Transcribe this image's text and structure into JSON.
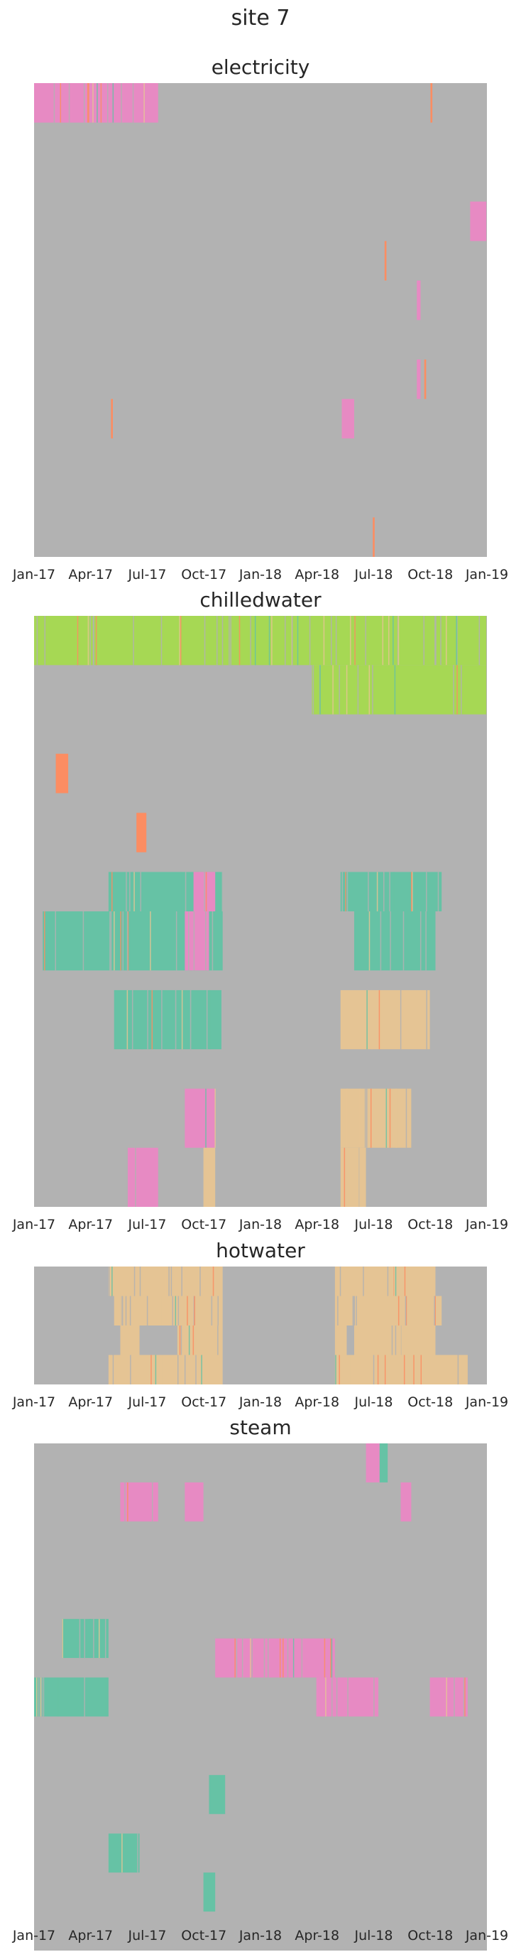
{
  "title": "site 7",
  "colors": {
    "no_data": "#b2b2b2",
    "green": "#a6d854",
    "pink": "#e78ac3",
    "orange": "#fc8d62",
    "teal": "#66c2a5",
    "tan": "#e5c494",
    "purple": "#8da0cb"
  },
  "chart_data": [
    {
      "type": "heatmap",
      "title": "electricity",
      "x_ticks": [
        "Jan-17",
        "Apr-17",
        "Jul-17",
        "Oct-17",
        "Jan-18",
        "Apr-18",
        "Jul-18",
        "Oct-18",
        "Jan-19"
      ],
      "x_range": [
        "2017-01-01",
        "2019-01-01"
      ],
      "meters": 48,
      "default": "no_data",
      "segments": [
        {
          "meter_start": 0,
          "meter_end": 4,
          "start": "2017-01-01",
          "end": "2017-07-20",
          "color": "pink"
        },
        {
          "meter_start": 0,
          "meter_end": 4,
          "start": "2018-10-02",
          "end": "2018-10-05",
          "color": "orange"
        },
        {
          "meter_start": 12,
          "meter_end": 16,
          "start": "2018-12-05",
          "end": "2018-12-31",
          "color": "pink"
        },
        {
          "meter_start": 16,
          "meter_end": 20,
          "start": "2018-07-20",
          "end": "2018-07-23",
          "color": "orange"
        },
        {
          "meter_start": 20,
          "meter_end": 24,
          "start": "2018-09-10",
          "end": "2018-09-16",
          "color": "pink"
        },
        {
          "meter_start": 28,
          "meter_end": 32,
          "start": "2018-09-10",
          "end": "2018-09-16",
          "color": "pink"
        },
        {
          "meter_start": 28,
          "meter_end": 32,
          "start": "2018-09-22",
          "end": "2018-09-25",
          "color": "orange"
        },
        {
          "meter_start": 32,
          "meter_end": 36,
          "start": "2017-05-05",
          "end": "2017-05-08",
          "color": "orange"
        },
        {
          "meter_start": 32,
          "meter_end": 36,
          "start": "2018-05-12",
          "end": "2018-06-01",
          "color": "pink"
        },
        {
          "meter_start": 44,
          "meter_end": 48,
          "start": "2018-07-01",
          "end": "2018-07-04",
          "color": "orange"
        }
      ]
    },
    {
      "type": "heatmap",
      "title": "chilledwater",
      "x_ticks": [
        "Jan-17",
        "Apr-17",
        "Jul-17",
        "Oct-17",
        "Jan-18",
        "Apr-18",
        "Jul-18",
        "Oct-18",
        "Jan-19"
      ],
      "x_range": [
        "2017-01-01",
        "2019-01-01"
      ],
      "meters": 60,
      "default": "no_data",
      "segments": [
        {
          "meter_start": 0,
          "meter_end": 5,
          "start": "2017-01-01",
          "end": "2018-12-31",
          "color": "green"
        },
        {
          "meter_start": 5,
          "meter_end": 10,
          "start": "2018-03-25",
          "end": "2018-12-31",
          "color": "green"
        },
        {
          "meter_start": 14,
          "meter_end": 18,
          "start": "2017-02-05",
          "end": "2017-02-25",
          "color": "orange"
        },
        {
          "meter_start": 20,
          "meter_end": 24,
          "start": "2017-06-15",
          "end": "2017-07-01",
          "color": "orange"
        },
        {
          "meter_start": 26,
          "meter_end": 30,
          "start": "2017-05-01",
          "end": "2017-11-01",
          "color": "teal"
        },
        {
          "meter_start": 26,
          "meter_end": 30,
          "start": "2018-05-10",
          "end": "2018-10-20",
          "color": "teal"
        },
        {
          "meter_start": 26,
          "meter_end": 30,
          "start": "2017-09-15",
          "end": "2017-10-20",
          "color": "pink"
        },
        {
          "meter_start": 30,
          "meter_end": 36,
          "start": "2017-01-15",
          "end": "2017-11-01",
          "color": "teal"
        },
        {
          "meter_start": 30,
          "meter_end": 36,
          "start": "2017-09-01",
          "end": "2017-10-10",
          "color": "pink"
        },
        {
          "meter_start": 30,
          "meter_end": 36,
          "start": "2018-06-01",
          "end": "2018-10-10",
          "color": "teal"
        },
        {
          "meter_start": 38,
          "meter_end": 44,
          "start": "2017-05-10",
          "end": "2017-10-30",
          "color": "teal"
        },
        {
          "meter_start": 38,
          "meter_end": 44,
          "start": "2018-05-10",
          "end": "2018-10-01",
          "color": "tan"
        },
        {
          "meter_start": 48,
          "meter_end": 54,
          "start": "2017-09-01",
          "end": "2017-10-20",
          "color": "pink"
        },
        {
          "meter_start": 48,
          "meter_end": 54,
          "start": "2018-05-10",
          "end": "2018-09-01",
          "color": "tan"
        },
        {
          "meter_start": 54,
          "meter_end": 60,
          "start": "2017-06-01",
          "end": "2017-07-20",
          "color": "pink"
        },
        {
          "meter_start": 54,
          "meter_end": 60,
          "start": "2017-10-01",
          "end": "2017-10-20",
          "color": "tan"
        },
        {
          "meter_start": 54,
          "meter_end": 60,
          "start": "2018-05-10",
          "end": "2018-06-20",
          "color": "tan"
        }
      ]
    },
    {
      "type": "heatmap",
      "title": "hotwater",
      "x_ticks": [
        "Jan-17",
        "Apr-17",
        "Jul-17",
        "Oct-17",
        "Jan-18",
        "Apr-18",
        "Jul-18",
        "Oct-18",
        "Jan-19"
      ],
      "x_range": [
        "2017-01-01",
        "2019-01-01"
      ],
      "meters": 4,
      "default": "no_data",
      "segments": [
        {
          "meter_start": 0,
          "meter_end": 1,
          "start": "2017-05-01",
          "end": "2017-11-01",
          "color": "tan"
        },
        {
          "meter_start": 0,
          "meter_end": 1,
          "start": "2018-05-01",
          "end": "2018-10-10",
          "color": "tan"
        },
        {
          "meter_start": 1,
          "meter_end": 2,
          "start": "2017-05-10",
          "end": "2017-11-01",
          "color": "tan"
        },
        {
          "meter_start": 1,
          "meter_end": 2,
          "start": "2018-05-01",
          "end": "2018-10-20",
          "color": "tan"
        },
        {
          "meter_start": 2,
          "meter_end": 3,
          "start": "2017-05-20",
          "end": "2017-06-20",
          "color": "tan"
        },
        {
          "meter_start": 2,
          "meter_end": 3,
          "start": "2017-08-20",
          "end": "2017-11-01",
          "color": "tan"
        },
        {
          "meter_start": 2,
          "meter_end": 3,
          "start": "2018-05-01",
          "end": "2018-05-20",
          "color": "tan"
        },
        {
          "meter_start": 2,
          "meter_end": 3,
          "start": "2018-06-01",
          "end": "2018-10-10",
          "color": "tan"
        },
        {
          "meter_start": 3,
          "meter_end": 4,
          "start": "2017-05-01",
          "end": "2017-11-01",
          "color": "tan"
        },
        {
          "meter_start": 3,
          "meter_end": 4,
          "start": "2018-05-01",
          "end": "2018-12-01",
          "color": "tan"
        }
      ]
    },
    {
      "type": "heatmap",
      "title": "steam",
      "x_ticks": [
        "Jan-17",
        "Apr-17",
        "Jul-17",
        "Oct-17",
        "Jan-18",
        "Apr-18",
        "Jul-18",
        "Oct-18",
        "Jan-19"
      ],
      "x_range": [
        "2017-01-01",
        "2019-01-01"
      ],
      "meters": 26,
      "default": "no_data",
      "segments": [
        {
          "meter_start": 0,
          "meter_end": 2,
          "start": "2018-06-20",
          "end": "2018-07-12",
          "color": "pink"
        },
        {
          "meter_start": 0,
          "meter_end": 2,
          "start": "2018-07-12",
          "end": "2018-07-25",
          "color": "teal"
        },
        {
          "meter_start": 2,
          "meter_end": 4,
          "start": "2017-05-20",
          "end": "2017-07-20",
          "color": "pink"
        },
        {
          "meter_start": 2,
          "meter_end": 4,
          "start": "2017-09-01",
          "end": "2017-10-01",
          "color": "pink"
        },
        {
          "meter_start": 2,
          "meter_end": 4,
          "start": "2018-08-15",
          "end": "2018-09-01",
          "color": "pink"
        },
        {
          "meter_start": 9,
          "meter_end": 11,
          "start": "2017-02-15",
          "end": "2017-05-01",
          "color": "teal"
        },
        {
          "meter_start": 10,
          "meter_end": 12,
          "start": "2017-10-20",
          "end": "2018-05-01",
          "color": "pink"
        },
        {
          "meter_start": 12,
          "meter_end": 14,
          "start": "2017-01-01",
          "end": "2017-05-01",
          "color": "teal"
        },
        {
          "meter_start": 12,
          "meter_end": 14,
          "start": "2018-04-01",
          "end": "2018-07-10",
          "color": "pink"
        },
        {
          "meter_start": 12,
          "meter_end": 14,
          "start": "2018-10-01",
          "end": "2018-12-01",
          "color": "pink"
        },
        {
          "meter_start": 17,
          "meter_end": 19,
          "start": "2017-10-10",
          "end": "2017-11-05",
          "color": "teal"
        },
        {
          "meter_start": 20,
          "meter_end": 22,
          "start": "2017-05-01",
          "end": "2017-06-20",
          "color": "teal"
        },
        {
          "meter_start": 22,
          "meter_end": 24,
          "start": "2017-10-01",
          "end": "2017-10-20",
          "color": "teal"
        }
      ]
    }
  ]
}
